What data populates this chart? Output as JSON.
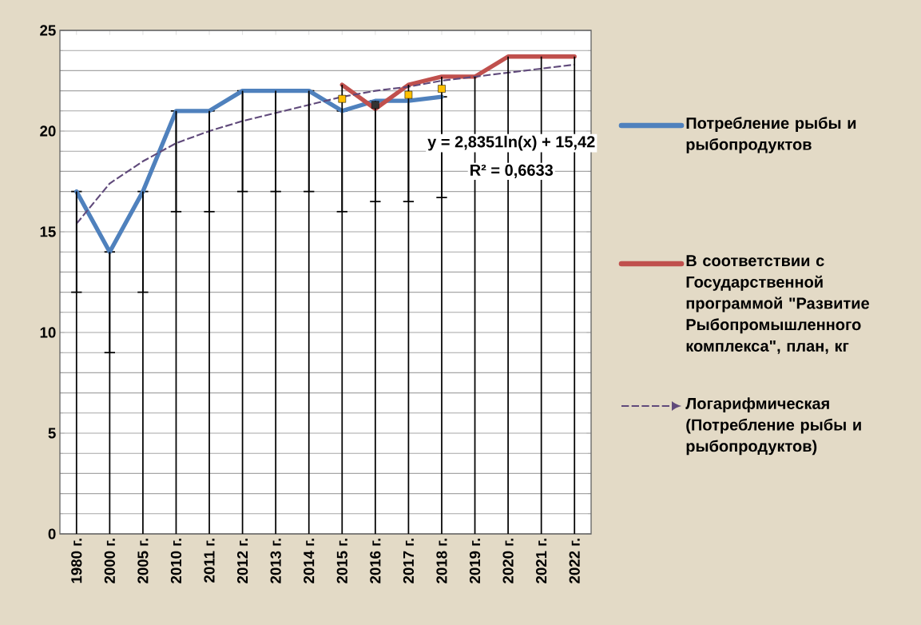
{
  "chart_data": {
    "type": "line",
    "categories": [
      "1980 г.",
      "2000 г.",
      "2005 г.",
      "2010 г.",
      "2011 г.",
      "2012 г.",
      "2013 г.",
      "2014 г.",
      "2015 г.",
      "2016 г.",
      "2017 г.",
      "2018 г.",
      "2019 г.",
      "2020 г.",
      "2021 г.",
      "2022 г."
    ],
    "series": [
      {
        "type": "scatter",
        "marker": "square",
        "colors": [
          null,
          null,
          null,
          null,
          null,
          null,
          null,
          null,
          "#ffc000",
          "#333333",
          "#ffc000",
          "#ffc000",
          null,
          null,
          null,
          null
        ],
        "values": [
          null,
          null,
          null,
          null,
          null,
          null,
          null,
          null,
          21.6,
          21.3,
          21.8,
          22.1,
          null,
          null,
          null,
          null
        ]
      },
      {
        "name": "Потребление рыбы и рыбопродуктов",
        "color": "#4f81bd",
        "values": [
          17,
          14,
          17,
          21,
          21,
          22,
          22,
          22,
          21,
          21.5,
          21.5,
          21.7,
          null,
          null,
          null,
          null
        ],
        "errors": [
          [
            12,
            17
          ],
          [
            9,
            14
          ],
          [
            12,
            17
          ],
          [
            16,
            21
          ],
          [
            16,
            21
          ],
          [
            17,
            22
          ],
          [
            17,
            22
          ],
          [
            17,
            22
          ],
          [
            16,
            21
          ],
          [
            16.5,
            21.5
          ],
          [
            16.5,
            21.5
          ],
          [
            16.7,
            21.7
          ],
          null,
          null,
          null,
          null
        ]
      },
      {
        "name": "В соответствии с Государственной программой \"Развитие Рыбопромышленного комплекса\", план, кг",
        "color": "#c0504d",
        "values": [
          null,
          null,
          null,
          null,
          null,
          null,
          null,
          null,
          22.3,
          21.1,
          22.3,
          22.7,
          22.7,
          23.7,
          23.7,
          23.7
        ]
      },
      {
        "name": "Логарифмическая (Потребление рыбы и рыбопродуктов)",
        "type": "line",
        "line_style": "dashed",
        "color": "#604a7b",
        "values": [
          15.4,
          17.4,
          18.5,
          19.4,
          20.0,
          20.5,
          20.9,
          21.3,
          21.7,
          22.0,
          22.2,
          22.5,
          22.7,
          22.9,
          23.1,
          23.3
        ]
      },
      {
        "type": "bar",
        "color": "#000000",
        "values": [
          17,
          14,
          17,
          21,
          21,
          22,
          22,
          22,
          22.3,
          21.5,
          22.3,
          22.7,
          22.7,
          23.7,
          23.7,
          23.7
        ]
      }
    ],
    "ylim": [
      0,
      25
    ],
    "yticks": [
      0,
      5,
      10,
      15,
      20,
      25
    ],
    "grid": "y",
    "legend": "right",
    "annotations": [
      "y = 2,8351ln(x) + 15,42",
      "R² = 0,6633"
    ]
  }
}
